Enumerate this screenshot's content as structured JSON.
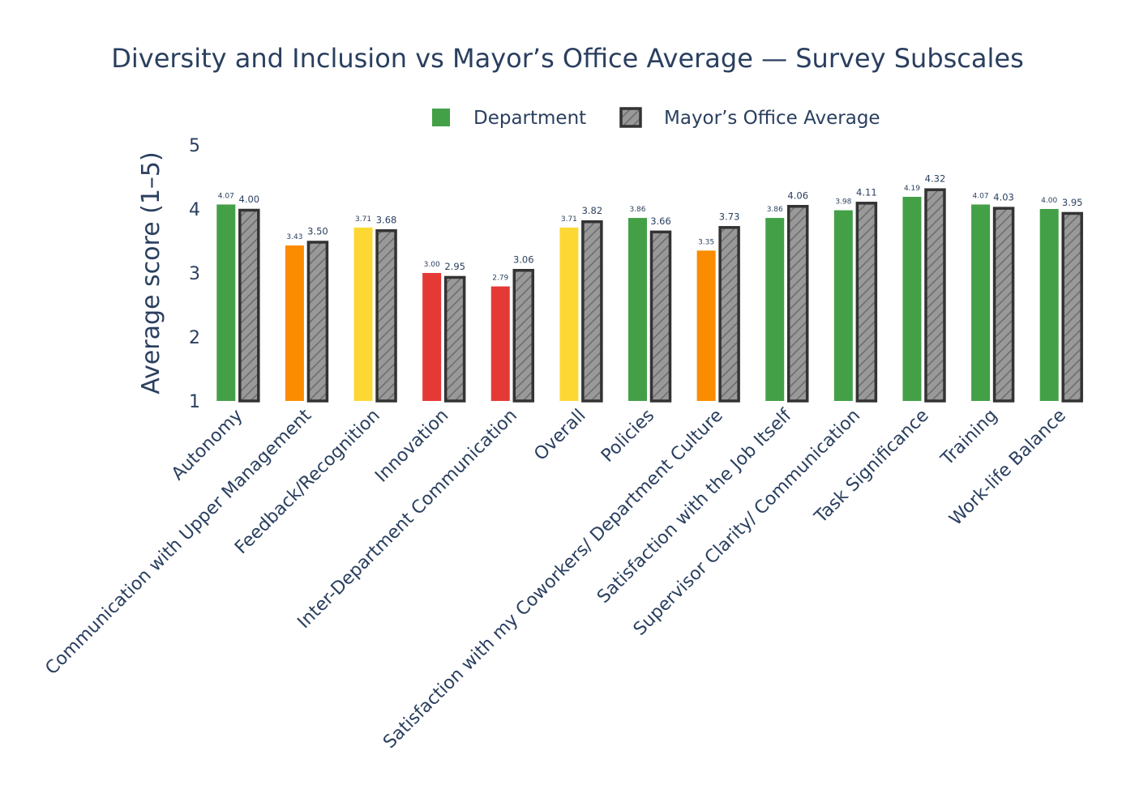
{
  "chart_data": {
    "type": "bar",
    "title": "Diversity and Inclusion vs Mayor’s Office Average — Survey Subscales",
    "ylabel": "Average score (1–5)",
    "xlabel": "",
    "ylim": [
      1,
      5
    ],
    "yticks": [
      1,
      2,
      3,
      4,
      5
    ],
    "grid": false,
    "legend_position": "top",
    "categories": [
      "Autonomy",
      "Communication with Upper Management",
      "Feedback/Recognition",
      "Innovation",
      "Inter-Department Communication",
      "Overall",
      "Policies",
      "Satisfaction with my Coworkers/ Department Culture",
      "Satisfaction with the Job Itself",
      "Supervisor Clarity/ Communication",
      "Task Significance",
      "Training",
      "Work-life Balance"
    ],
    "series": [
      {
        "name": "Department",
        "values": [
          4.07,
          3.43,
          3.71,
          3.0,
          2.79,
          3.71,
          3.86,
          3.35,
          3.86,
          3.98,
          4.19,
          4.07,
          4.0
        ],
        "labels": [
          "4.07",
          "3.43",
          "3.71",
          "3.00",
          "2.79",
          "3.71",
          "3.86",
          "3.35",
          "3.86",
          "3.98",
          "4.19",
          "4.07",
          "4.00"
        ],
        "colors": [
          "#43a047",
          "#fb8c00",
          "#fdd835",
          "#e53935",
          "#e53935",
          "#fdd835",
          "#43a047",
          "#fb8c00",
          "#43a047",
          "#43a047",
          "#43a047",
          "#43a047",
          "#43a047"
        ],
        "legend_color": "#43a047"
      },
      {
        "name": "Mayor’s Office Average",
        "values": [
          4.0,
          3.5,
          3.68,
          2.95,
          3.06,
          3.82,
          3.66,
          3.73,
          4.06,
          4.11,
          4.32,
          4.03,
          3.95
        ],
        "labels": [
          "4.00",
          "3.50",
          "3.68",
          "2.95",
          "3.06",
          "3.82",
          "3.66",
          "3.73",
          "4.06",
          "4.11",
          "4.32",
          "4.03",
          "3.95"
        ],
        "fill_color": "#999999",
        "outline_color": "#333333",
        "pattern": "diagonal-hatch"
      }
    ]
  }
}
